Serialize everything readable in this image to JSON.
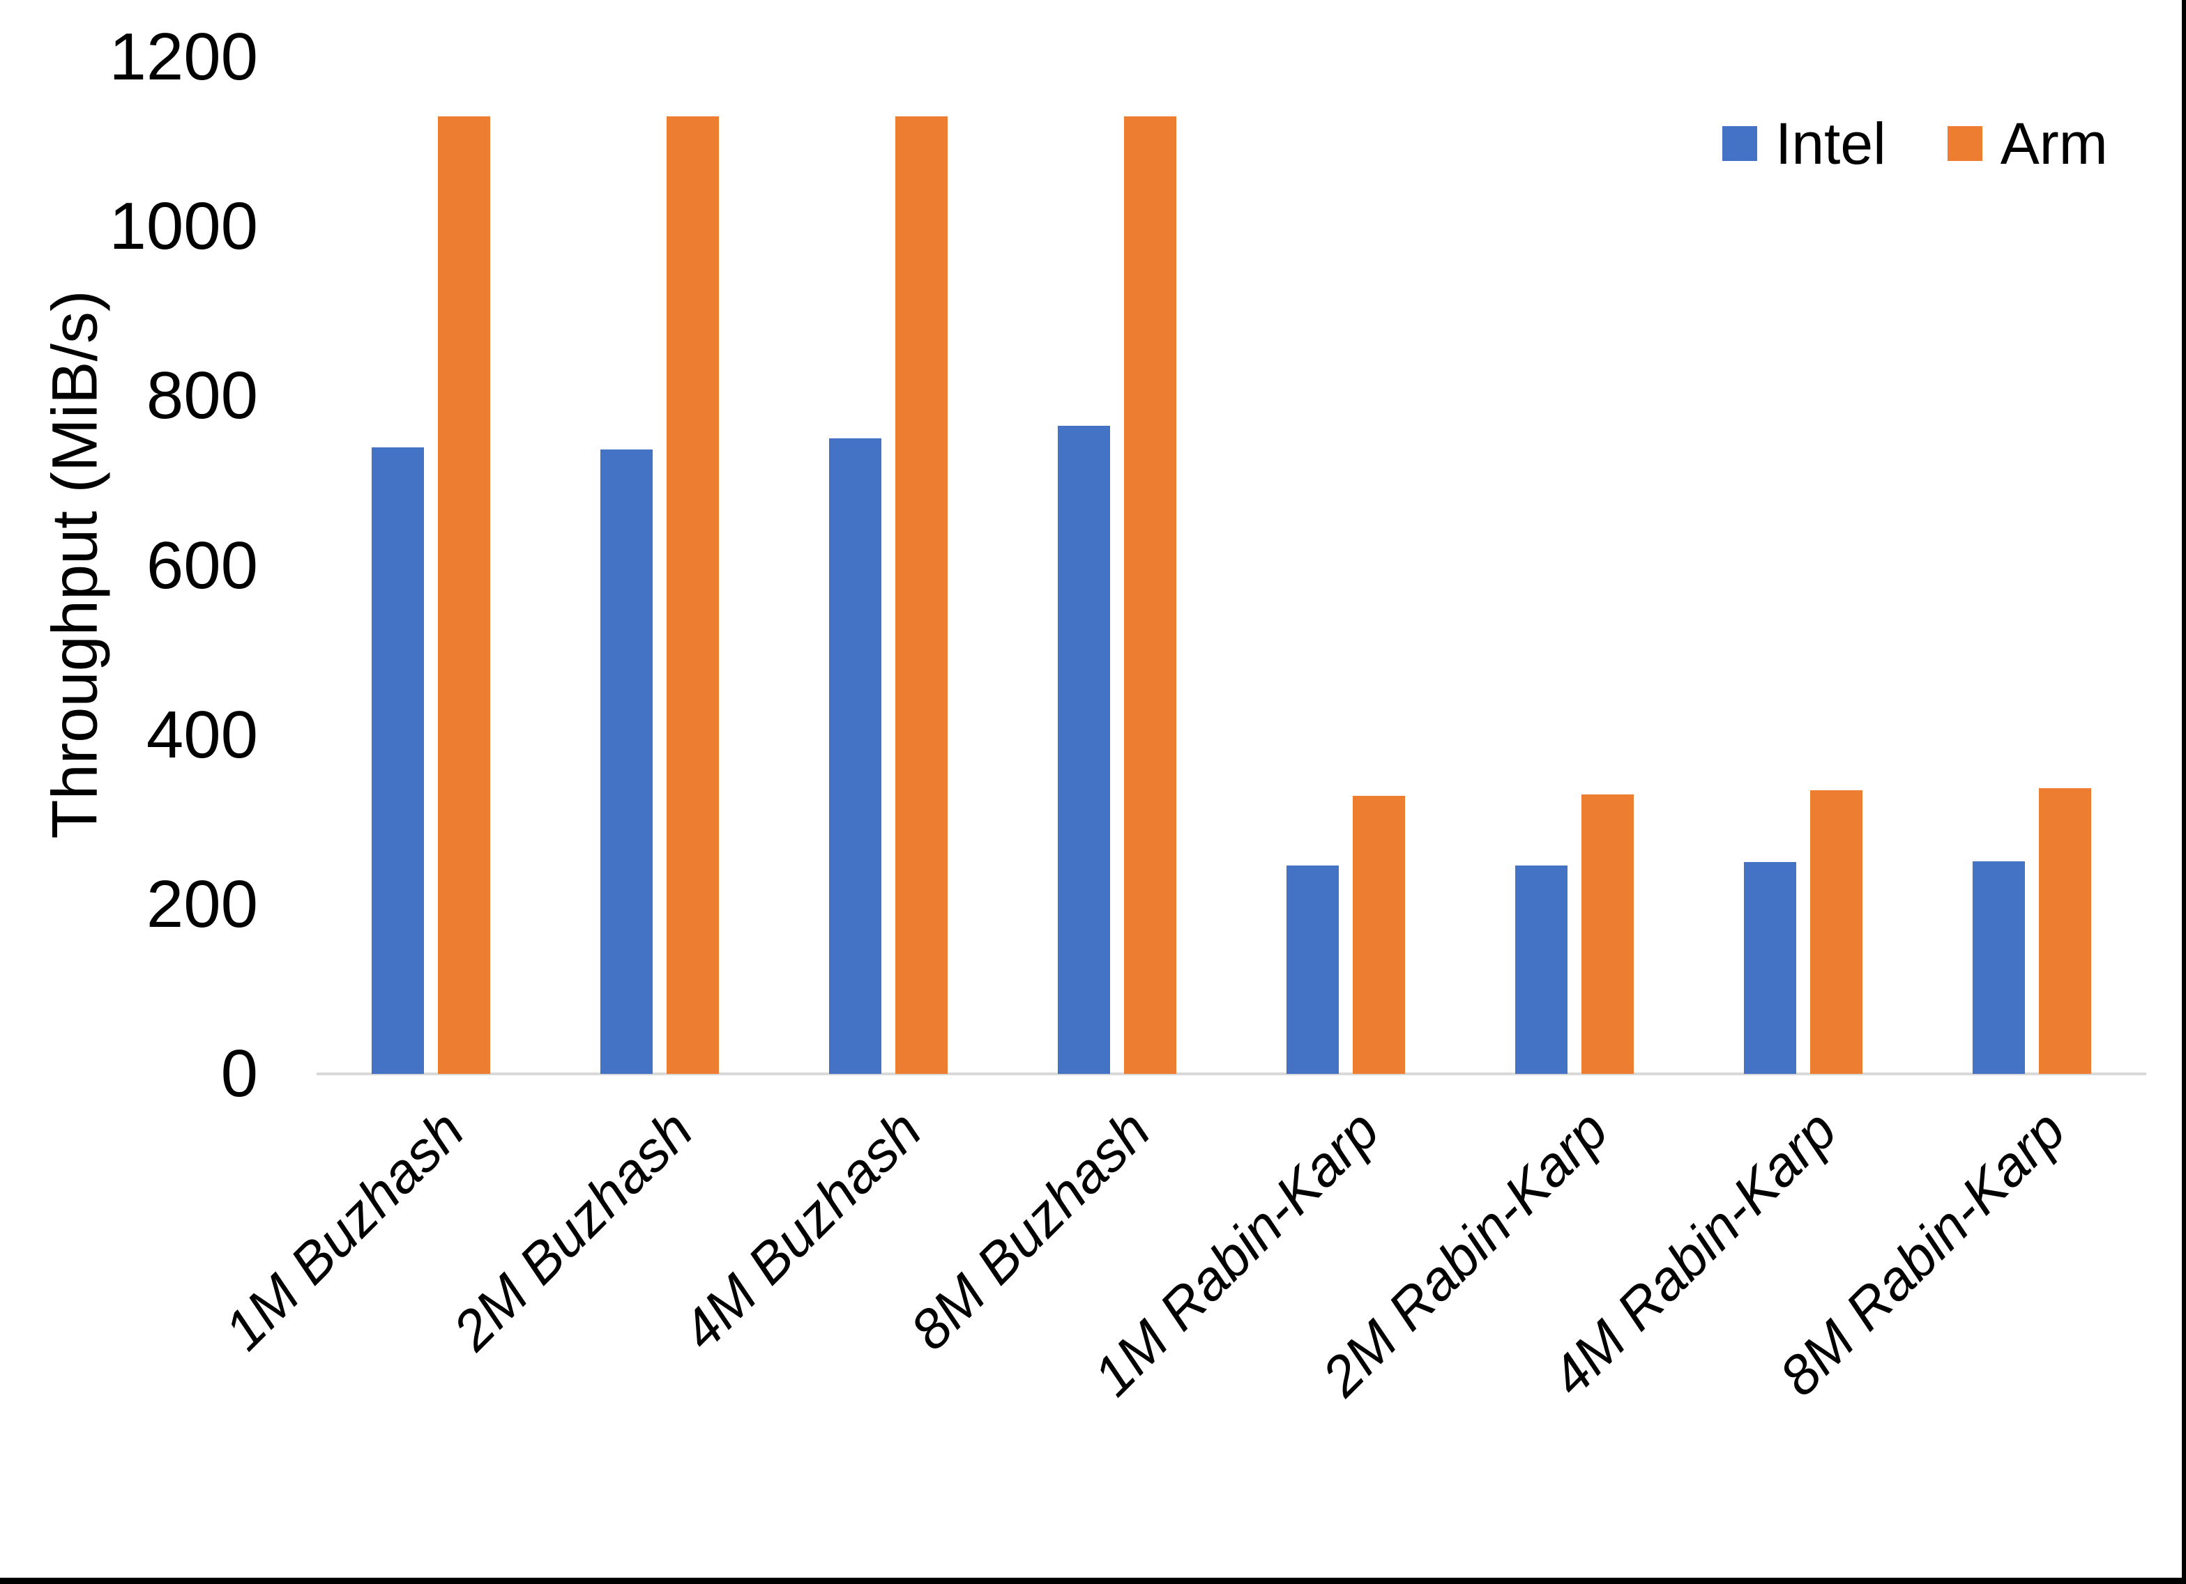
{
  "chart_data": {
    "type": "bar",
    "title": "",
    "ylabel": "Throughput (MiB/s)",
    "xlabel": "",
    "ylim": [
      0,
      1200
    ],
    "yticks": [
      0,
      200,
      400,
      600,
      800,
      1000,
      1200
    ],
    "grid": false,
    "legend_position": "top-right",
    "categories": [
      "1M Buzhash",
      "2M Buzhash",
      "4M Buzhash",
      "8M Buzhash",
      "1M Rabin-Karp",
      "2M Rabin-Karp",
      "4M Rabin-Karp",
      "8M Rabin-Karp"
    ],
    "series": [
      {
        "name": "Intel",
        "color": "#4472C4",
        "values": [
          739,
          737,
          750,
          765,
          246,
          246,
          250,
          251
        ]
      },
      {
        "name": "Arm",
        "color": "#ED7D31",
        "values": [
          1130,
          1130,
          1130,
          1130,
          328,
          330,
          335,
          337
        ]
      }
    ]
  },
  "colors": {
    "background": "#FFFFFF",
    "axis_line": "#D9D9D9",
    "text": "#000000",
    "window_edge": "#000000",
    "intel": "#4472C4",
    "arm": "#ED7D31"
  }
}
